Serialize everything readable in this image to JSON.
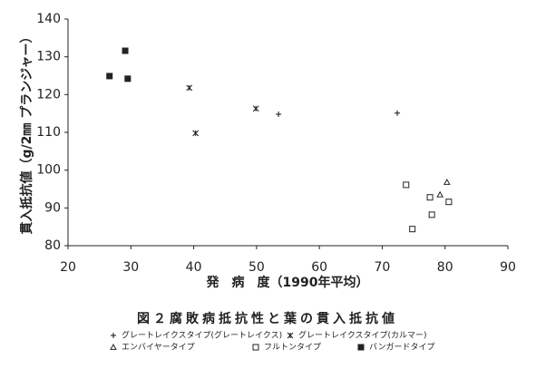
{
  "chart_data": {
    "type": "scatter",
    "title": "図２腐敗病抵抗性と葉の貫入抵抗値",
    "x_label": "発　病　度（1990年平均）",
    "y_label": "貫入抵抗値（g/2㎜ プランジャー）",
    "xlim": [
      20,
      90
    ],
    "xticks": [
      20,
      30,
      40,
      50,
      60,
      70,
      80,
      90
    ],
    "ylim": [
      80,
      140
    ],
    "yticks": [
      80,
      90,
      100,
      110,
      120,
      130,
      140
    ],
    "grid": false,
    "series": [
      {
        "name": "グレートレイクスタイプ(グレートレイクス)",
        "marker": "plus",
        "color": "#222222",
        "x": [
          53.5,
          72.4
        ],
        "values": [
          114.8,
          115.1
        ]
      },
      {
        "name": "グレートレイクスタイプ(カルマー)",
        "marker": "asterisk",
        "color": "#222222",
        "x": [
          39.3,
          40.3,
          49.9
        ],
        "values": [
          121.8,
          109.8,
          116.3
        ]
      },
      {
        "name": "エンバイヤータイプ",
        "marker": "triangle",
        "color": "#222222",
        "x": [
          80.3,
          79.2
        ],
        "values": [
          96.8,
          93.5
        ]
      },
      {
        "name": "フルトンタイプ",
        "marker": "square",
        "color": "#222222",
        "x": [
          73.8,
          77.6,
          77.9,
          74.8,
          80.6
        ],
        "values": [
          96.1,
          92.8,
          88.2,
          84.4,
          91.6
        ]
      },
      {
        "name": "バンガードタイプ",
        "marker": "filled-square",
        "color": "#222222",
        "x": [
          26.6,
          29.1,
          29.5
        ],
        "values": [
          124.9,
          131.6,
          124.2
        ]
      }
    ]
  }
}
